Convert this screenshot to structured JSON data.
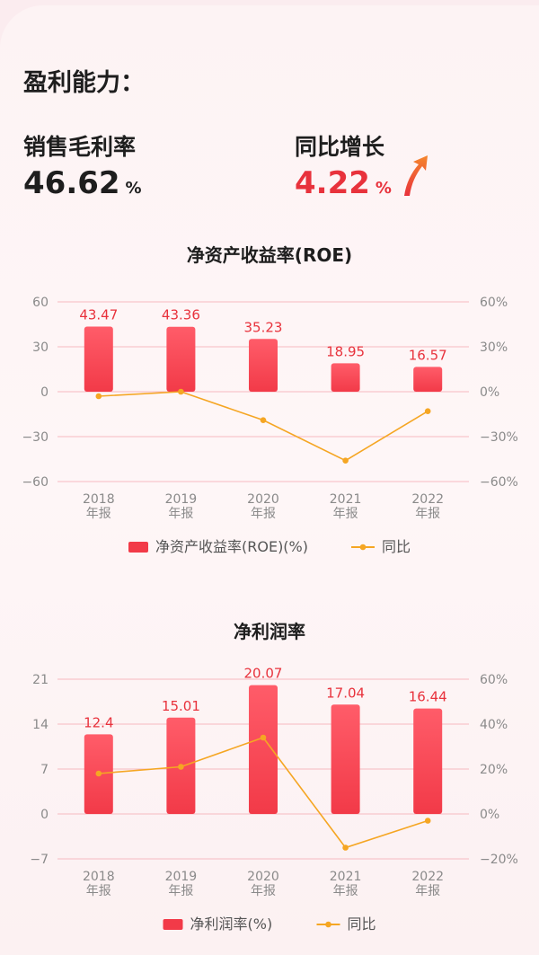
{
  "section": {
    "title": "盈利能力："
  },
  "metrics": {
    "gross_margin": {
      "label": "销售毛利率",
      "value": "46.62",
      "unit": "%",
      "color": "#1e1e1e"
    },
    "yoy": {
      "label": "同比增长",
      "value": "4.22",
      "unit": "%",
      "color": "#e8323c",
      "icon": "arrow-up-right-icon"
    }
  },
  "colors": {
    "bar": "#f23a48",
    "line": "#f5a623",
    "grid": "#f6b9c0",
    "axis_text": "#8a8a8a",
    "label_text": "#e8323c"
  },
  "chart_data": [
    {
      "type": "bar",
      "title": "净资产收益率(ROE)",
      "categories": [
        [
          "2018",
          "年报"
        ],
        [
          "2019",
          "年报"
        ],
        [
          "2020",
          "年报"
        ],
        [
          "2021",
          "年报"
        ],
        [
          "2022",
          "年报"
        ]
      ],
      "series": [
        {
          "name": "净资产收益率(ROE)(%)",
          "type": "bar",
          "axis": "left",
          "values": [
            43.47,
            43.36,
            35.23,
            18.95,
            16.57
          ],
          "labels": [
            "43.47",
            "43.36",
            "35.23",
            "18.95",
            "16.57"
          ]
        },
        {
          "name": "同比",
          "type": "line",
          "axis": "right",
          "values": [
            -3,
            0,
            -19,
            -46,
            -13
          ]
        }
      ],
      "left_ticks": [
        "60",
        "30",
        "0",
        "−30",
        "−60"
      ],
      "right_ticks": [
        "60%",
        "30%",
        "0%",
        "−30%",
        "−60%"
      ],
      "left_range": [
        -60,
        60
      ],
      "right_range": [
        -60,
        60
      ],
      "legend_position": "bottom"
    },
    {
      "type": "bar",
      "title": "净利润率",
      "categories": [
        [
          "2018",
          "年报"
        ],
        [
          "2019",
          "年报"
        ],
        [
          "2020",
          "年报"
        ],
        [
          "2021",
          "年报"
        ],
        [
          "2022",
          "年报"
        ]
      ],
      "series": [
        {
          "name": "净利润率(%)",
          "type": "bar",
          "axis": "left",
          "values": [
            12.4,
            15.01,
            20.07,
            17.04,
            16.44
          ],
          "labels": [
            "12.4",
            "15.01",
            "20.07",
            "17.04",
            "16.44"
          ]
        },
        {
          "name": "同比",
          "type": "line",
          "axis": "right",
          "values": [
            18,
            21,
            34,
            -15,
            -3
          ]
        }
      ],
      "left_ticks": [
        "21",
        "14",
        "7",
        "0",
        "−7"
      ],
      "right_ticks": [
        "60%",
        "40%",
        "20%",
        "0%",
        "−20%"
      ],
      "left_range": [
        -7,
        21
      ],
      "right_range": [
        -20,
        60
      ],
      "legend_position": "bottom"
    }
  ]
}
